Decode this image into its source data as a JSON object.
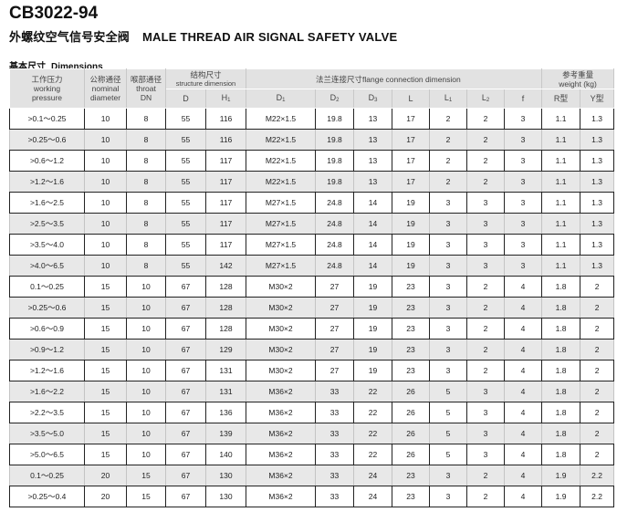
{
  "title": "CB3022-94",
  "subtitle": {
    "cn": "外螺纹空气信号安全阀",
    "en": "MALE THREAD AIR SIGNAL SAFETY VALVE"
  },
  "section": {
    "cn": "基本尺寸",
    "en": "Dimensions"
  },
  "headers": {
    "pressure": [
      "工作压力",
      "working",
      "pressure"
    ],
    "nominal": [
      "公称通径",
      "nominal",
      "diameter"
    ],
    "throat": [
      "喉部通径",
      "throat",
      "DN"
    ],
    "structure": [
      "结构尺寸",
      "structure dimension"
    ],
    "flange": "法兰连接尺寸flange connection dimension",
    "weight": [
      "参考重量",
      "weight (kg)"
    ],
    "sub": {
      "D": "D",
      "H1": "H",
      "H1_sub": "1",
      "D1": "D",
      "D1_sub": "1",
      "D2": "D",
      "D2_sub": "2",
      "D3": "D",
      "D3_sub": "3",
      "L": "L",
      "L1": "L",
      "L1_sub": "1",
      "L2": "L",
      "L2_sub": "2",
      "f": "f",
      "R": "R型",
      "Y": "Y型"
    }
  },
  "rows": [
    [
      ">0.1～0.25",
      "10",
      "8",
      "55",
      "116",
      "M22×1.5",
      "19.8",
      "13",
      "17",
      "2",
      "2",
      "3",
      "1.1",
      "1.3"
    ],
    [
      ">0.25～0.6",
      "10",
      "8",
      "55",
      "116",
      "M22×1.5",
      "19.8",
      "13",
      "17",
      "2",
      "2",
      "3",
      "1.1",
      "1.3"
    ],
    [
      ">0.6～1.2",
      "10",
      "8",
      "55",
      "117",
      "M22×1.5",
      "19.8",
      "13",
      "17",
      "2",
      "2",
      "3",
      "1.1",
      "1.3"
    ],
    [
      ">1.2～1.6",
      "10",
      "8",
      "55",
      "117",
      "M22×1.5",
      "19.8",
      "13",
      "17",
      "2",
      "2",
      "3",
      "1.1",
      "1.3"
    ],
    [
      ">1.6～2.5",
      "10",
      "8",
      "55",
      "117",
      "M27×1.5",
      "24.8",
      "14",
      "19",
      "3",
      "3",
      "3",
      "1.1",
      "1.3"
    ],
    [
      ">2.5～3.5",
      "10",
      "8",
      "55",
      "117",
      "M27×1.5",
      "24.8",
      "14",
      "19",
      "3",
      "3",
      "3",
      "1.1",
      "1.3"
    ],
    [
      ">3.5～4.0",
      "10",
      "8",
      "55",
      "117",
      "M27×1.5",
      "24.8",
      "14",
      "19",
      "3",
      "3",
      "3",
      "1.1",
      "1.3"
    ],
    [
      ">4.0～6.5",
      "10",
      "8",
      "55",
      "142",
      "M27×1.5",
      "24.8",
      "14",
      "19",
      "3",
      "3",
      "3",
      "1.1",
      "1.3"
    ],
    [
      "0.1～0.25",
      "15",
      "10",
      "67",
      "128",
      "M30×2",
      "27",
      "19",
      "23",
      "3",
      "2",
      "4",
      "1.8",
      "2"
    ],
    [
      ">0.25～0.6",
      "15",
      "10",
      "67",
      "128",
      "M30×2",
      "27",
      "19",
      "23",
      "3",
      "2",
      "4",
      "1.8",
      "2"
    ],
    [
      ">0.6～0.9",
      "15",
      "10",
      "67",
      "128",
      "M30×2",
      "27",
      "19",
      "23",
      "3",
      "2",
      "4",
      "1.8",
      "2"
    ],
    [
      ">0.9～1.2",
      "15",
      "10",
      "67",
      "129",
      "M30×2",
      "27",
      "19",
      "23",
      "3",
      "2",
      "4",
      "1.8",
      "2"
    ],
    [
      ">1.2～1.6",
      "15",
      "10",
      "67",
      "131",
      "M30×2",
      "27",
      "19",
      "23",
      "3",
      "2",
      "4",
      "1.8",
      "2"
    ],
    [
      ">1.6～2.2",
      "15",
      "10",
      "67",
      "131",
      "M36×2",
      "33",
      "22",
      "26",
      "5",
      "3",
      "4",
      "1.8",
      "2"
    ],
    [
      ">2.2～3.5",
      "15",
      "10",
      "67",
      "136",
      "M36×2",
      "33",
      "22",
      "26",
      "5",
      "3",
      "4",
      "1.8",
      "2"
    ],
    [
      ">3.5～5.0",
      "15",
      "10",
      "67",
      "139",
      "M36×2",
      "33",
      "22",
      "26",
      "5",
      "3",
      "4",
      "1.8",
      "2"
    ],
    [
      ">5.0～6.5",
      "15",
      "10",
      "67",
      "140",
      "M36×2",
      "33",
      "22",
      "26",
      "5",
      "3",
      "4",
      "1.8",
      "2"
    ],
    [
      "0.1～0.25",
      "20",
      "15",
      "67",
      "130",
      "M36×2",
      "33",
      "24",
      "23",
      "3",
      "2",
      "4",
      "1.9",
      "2.2"
    ],
    [
      ">0.25～0.4",
      "20",
      "15",
      "67",
      "130",
      "M36×2",
      "33",
      "24",
      "23",
      "3",
      "2",
      "4",
      "1.9",
      "2.2"
    ]
  ]
}
